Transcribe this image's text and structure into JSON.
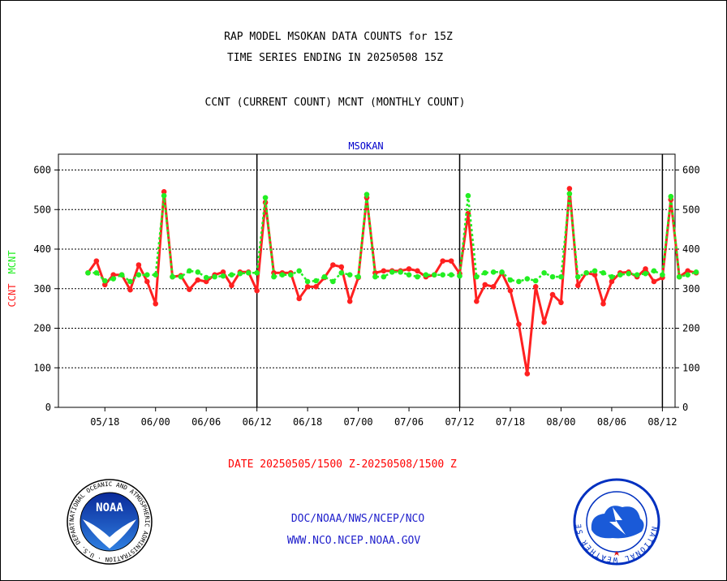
{
  "header": {
    "title_line1": "RAP MODEL MSOKAN DATA COUNTS for 15Z",
    "title_line2": "TIME SERIES ENDING IN 20250508 15Z",
    "subtitle": "CCNT (CURRENT COUNT) MCNT (MONTHLY COUNT)"
  },
  "footer": {
    "date_range": "DATE 20250505/1500 Z-20250508/1500 Z",
    "org_path": "DOC/NOAA/NWS/NCEP/NCO",
    "website": "WWW.NCO.NCEP.NOAA.GOV",
    "noaa_logo_text": "NOAA",
    "noaa_ring_text": "NATIONAL OCEANIC AND ATMOSPHERIC ADMINISTRATION · U.S. DEPARTMENT OF COMMERCE",
    "nws_ring_text": "NATIONAL WEATHER SERVICE"
  },
  "colors": {
    "ccnt": "#ff2020",
    "mcnt": "#22ee22",
    "panel_title": "#0000cc",
    "date_text": "#ff0000",
    "link_text": "#2020cc"
  },
  "chart_data": {
    "type": "line",
    "panel_title": "MSOKAN",
    "ylabel_left_ccnt": "CCNT",
    "ylabel_left_mcnt": "MCNT",
    "ylim": [
      0,
      640
    ],
    "yticks": [
      0,
      100,
      200,
      300,
      400,
      500,
      600
    ],
    "grid": "horizontal dotted at y ticks",
    "x_tick_labels": [
      "05/18",
      "06/00",
      "06/06",
      "06/12",
      "06/18",
      "07/00",
      "07/06",
      "07/12",
      "07/18",
      "08/00",
      "08/06",
      "08/12"
    ],
    "x_tick_index": [
      2,
      8,
      14,
      20,
      26,
      32,
      38,
      44,
      50,
      56,
      62,
      68
    ],
    "day_boundaries_at_index": [
      20,
      44,
      68
    ],
    "x_index_range": [
      -3.5,
      69.5
    ],
    "series": [
      {
        "name": "CCNT",
        "values": [
          340,
          370,
          310,
          335,
          335,
          297,
          360,
          318,
          262,
          545,
          330,
          333,
          298,
          322,
          318,
          335,
          342,
          308,
          342,
          342,
          295,
          518,
          340,
          340,
          340,
          275,
          305,
          305,
          328,
          360,
          355,
          268,
          328,
          530,
          340,
          345,
          345,
          345,
          350,
          345,
          330,
          335,
          370,
          370,
          338,
          490,
          268,
          310,
          305,
          340,
          295,
          210,
          85,
          305,
          215,
          285,
          265,
          553,
          308,
          340,
          335,
          262,
          318,
          340,
          342,
          330,
          350,
          318,
          328,
          525,
          330,
          345,
          340
        ]
      },
      {
        "name": "MCNT",
        "values": [
          340,
          340,
          320,
          325,
          335,
          318,
          335,
          335,
          335,
          535,
          330,
          330,
          345,
          342,
          328,
          330,
          332,
          335,
          338,
          340,
          340,
          530,
          330,
          335,
          335,
          345,
          318,
          320,
          330,
          318,
          340,
          335,
          330,
          538,
          330,
          330,
          342,
          342,
          335,
          330,
          335,
          335,
          335,
          335,
          332,
          535,
          330,
          340,
          342,
          342,
          322,
          318,
          325,
          320,
          340,
          330,
          330,
          540,
          330,
          340,
          345,
          340,
          330,
          335,
          338,
          335,
          338,
          345,
          335,
          533,
          330,
          335,
          342
        ]
      }
    ]
  }
}
